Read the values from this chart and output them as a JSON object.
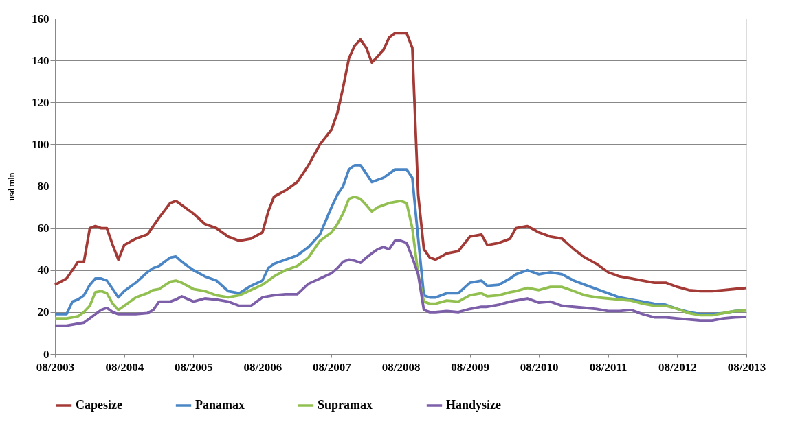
{
  "chart_data": {
    "type": "line",
    "ylabel": "usd mln",
    "x": [
      "2003-08",
      "2003-10",
      "2003-11",
      "2003-12",
      "2004-01",
      "2004-02",
      "2004-03",
      "2004-04",
      "2004-05",
      "2004-06",
      "2004-07",
      "2004-08",
      "2004-10",
      "2004-12",
      "2005-01",
      "2005-02",
      "2005-04",
      "2005-05",
      "2005-06",
      "2005-08",
      "2005-10",
      "2005-12",
      "2006-02",
      "2006-04",
      "2006-06",
      "2006-08",
      "2006-09",
      "2006-10",
      "2006-12",
      "2007-02",
      "2007-04",
      "2007-06",
      "2007-08",
      "2007-09",
      "2007-10",
      "2007-11",
      "2007-12",
      "2008-01",
      "2008-02",
      "2008-03",
      "2008-04",
      "2008-05",
      "2008-06",
      "2008-07",
      "2008-08",
      "2008-09",
      "2008-10",
      "2008-11",
      "2008-12",
      "2009-01",
      "2009-02",
      "2009-04",
      "2009-06",
      "2009-08",
      "2009-10",
      "2009-11",
      "2010-01",
      "2010-03",
      "2010-04",
      "2010-06",
      "2010-08",
      "2010-10",
      "2010-12",
      "2011-02",
      "2011-04",
      "2011-06",
      "2011-08",
      "2011-10",
      "2011-12",
      "2012-02",
      "2012-04",
      "2012-06",
      "2012-08",
      "2012-10",
      "2012-12",
      "2013-02",
      "2013-04",
      "2013-06",
      "2013-08"
    ],
    "series": [
      {
        "name": "Capesize",
        "color": "#a33a36",
        "values": [
          33,
          36,
          40,
          44,
          44,
          60,
          61,
          60,
          60,
          52,
          45,
          52,
          55,
          57,
          61,
          65,
          72,
          73,
          71,
          67,
          62,
          60,
          56,
          54,
          55,
          58,
          68,
          75,
          78,
          82,
          90,
          100,
          107,
          115,
          127,
          141,
          147,
          150,
          146,
          139,
          142,
          145,
          151,
          153,
          153,
          153,
          146,
          76,
          50,
          46,
          45,
          48,
          49,
          56,
          57,
          52,
          53,
          55,
          60,
          61,
          58,
          56,
          55,
          50,
          46,
          43,
          39,
          37,
          36,
          35,
          34,
          34,
          32,
          30.5,
          30,
          30,
          30.5,
          31,
          31.5
        ]
      },
      {
        "name": "Panamax",
        "color": "#4a86c5",
        "values": [
          19,
          19,
          25,
          26,
          28,
          33,
          36,
          36,
          35,
          31,
          27,
          30,
          34,
          39,
          41,
          42,
          46,
          46.5,
          44,
          40,
          37,
          35,
          30,
          29,
          32.5,
          35,
          41,
          43,
          45,
          47,
          51,
          57,
          70,
          76,
          80,
          88,
          90,
          90,
          86,
          82,
          83,
          84,
          86,
          88,
          88,
          88,
          84,
          55,
          28,
          27,
          27,
          29,
          29,
          34,
          35,
          32.5,
          33,
          36,
          38,
          40,
          38,
          39,
          38,
          35,
          33,
          31,
          29,
          27,
          26,
          25,
          24,
          23.5,
          21.5,
          20,
          19,
          19,
          19.5,
          20.5,
          21
        ]
      },
      {
        "name": "Supramax",
        "color": "#92c050",
        "values": [
          17,
          17,
          17.5,
          18,
          20,
          23,
          29.5,
          30,
          29,
          24,
          21,
          23,
          27,
          29,
          30.5,
          31,
          34.5,
          35,
          34,
          31,
          30,
          28,
          27,
          28,
          30.5,
          33,
          35,
          37,
          40,
          42,
          46,
          54,
          58,
          62,
          67,
          74,
          75,
          74,
          71,
          68,
          70,
          71,
          72,
          72.5,
          73,
          72,
          60,
          38,
          25,
          24,
          24,
          25.5,
          25,
          28,
          29,
          27.5,
          28,
          29.5,
          30,
          31.5,
          30.5,
          32,
          32,
          30,
          28,
          27,
          26.5,
          26,
          25.5,
          24,
          23,
          23,
          21.5,
          19.5,
          18.5,
          18.5,
          19.5,
          20.5,
          20.7
        ]
      },
      {
        "name": "Handysize",
        "color": "#7d5ea8",
        "values": [
          13.5,
          13.5,
          14,
          14.5,
          15,
          17,
          19,
          21,
          22,
          20,
          19,
          19,
          19,
          19.5,
          21,
          25,
          25,
          26,
          27.5,
          25,
          26.5,
          26,
          25,
          23,
          23,
          27,
          27.5,
          28,
          28.5,
          28.5,
          33.5,
          36,
          38.5,
          41,
          44,
          45,
          44.5,
          43.5,
          46,
          48,
          50,
          51,
          50,
          54,
          54,
          53,
          46,
          38,
          21,
          20,
          20,
          20.5,
          20,
          21.5,
          22.5,
          22.5,
          23.5,
          25,
          25.5,
          26.5,
          24.5,
          25,
          23,
          22.5,
          22,
          21.5,
          20.5,
          20.5,
          21,
          19,
          17.5,
          17.5,
          17,
          16.5,
          16,
          16,
          17,
          17.5,
          17.7
        ]
      }
    ],
    "xlim": [
      "2003-08",
      "2013-08"
    ],
    "xticks": [
      {
        "value": "2003-08",
        "label": "08/2003"
      },
      {
        "value": "2004-08",
        "label": "08/2004"
      },
      {
        "value": "2005-08",
        "label": "08/2005"
      },
      {
        "value": "2006-08",
        "label": "08/2006"
      },
      {
        "value": "2007-08",
        "label": "08/2007"
      },
      {
        "value": "2008-08",
        "label": "08/2008"
      },
      {
        "value": "2009-08",
        "label": "08/2009"
      },
      {
        "value": "2010-08",
        "label": "08/2010"
      },
      {
        "value": "2011-08",
        "label": "08/2011"
      },
      {
        "value": "2012-08",
        "label": "08/2012"
      },
      {
        "value": "2013-08",
        "label": "08/2013"
      }
    ],
    "ylim": [
      0,
      160
    ],
    "yticks": [
      0,
      20,
      40,
      60,
      80,
      100,
      120,
      140,
      160
    ],
    "grid": "y",
    "legend": "bottom",
    "marker": "none",
    "line_style": "solid"
  }
}
